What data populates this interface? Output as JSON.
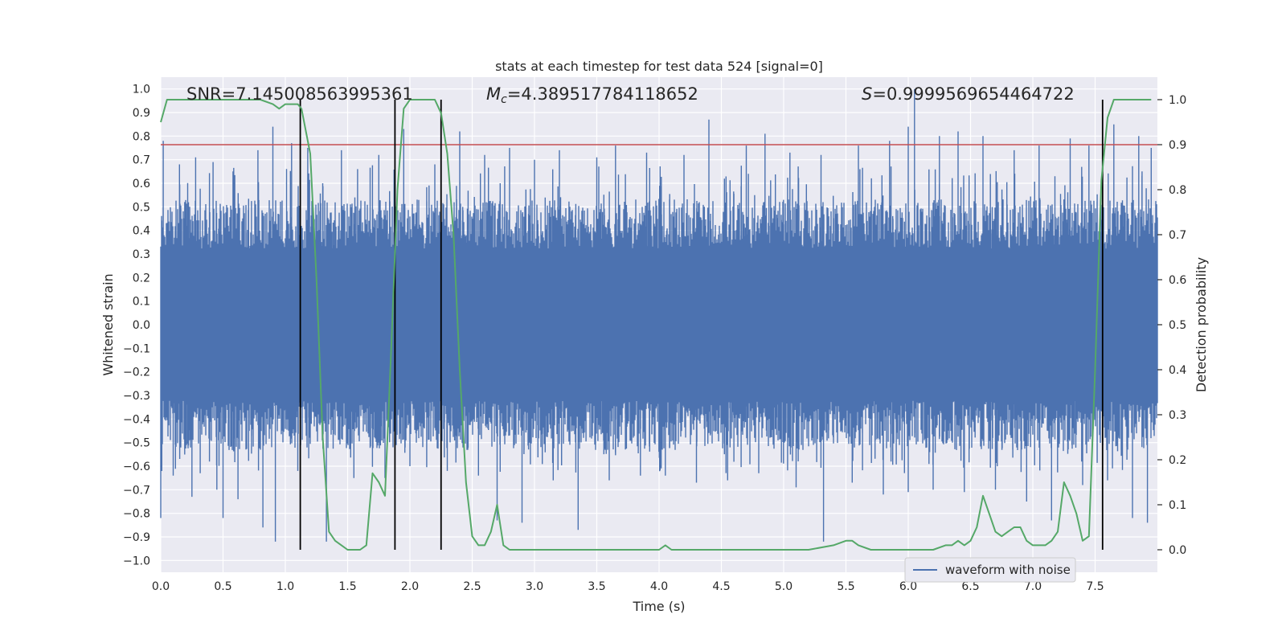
{
  "chart_data": {
    "type": "line",
    "title": "stats at each timestep for test data 524 [signal=0]",
    "xlabel": "Time (s)",
    "ylabel_left": "Whitened strain",
    "ylabel_right": "Detection probability",
    "xlim": [
      0.0,
      8.0
    ],
    "ylim_left": [
      -1.05,
      1.05
    ],
    "ylim_right": [
      -0.05,
      1.05
    ],
    "x_ticks": [
      "0.0",
      "0.5",
      "1.0",
      "1.5",
      "2.0",
      "2.5",
      "3.0",
      "3.5",
      "4.0",
      "4.5",
      "5.0",
      "5.5",
      "6.0",
      "6.5",
      "7.0",
      "7.5"
    ],
    "y_ticks_left": [
      "1.0",
      "0.9",
      "0.8",
      "0.7",
      "0.6",
      "0.5",
      "0.4",
      "0.3",
      "0.2",
      "0.1",
      "0.0",
      "−0.1",
      "−0.2",
      "−0.3",
      "−0.4",
      "−0.5",
      "−0.6",
      "−0.7",
      "−0.8",
      "−0.9",
      "−1.0"
    ],
    "y_ticks_right": [
      "1.0",
      "0.9",
      "0.8",
      "0.7",
      "0.6",
      "0.5",
      "0.4",
      "0.3",
      "0.2",
      "0.1",
      "0.0"
    ],
    "grid": true,
    "legend": {
      "position": "lower-right",
      "entries": [
        "waveform with noise"
      ]
    },
    "annotations": {
      "snr": "SNR=7.145008563995361",
      "mc_symbol": "M",
      "mc_sub": "c",
      "mc_value": "=4.389517784118652",
      "s_symbol": "S",
      "s_value": "=0.9999569654464722"
    },
    "threshold": {
      "axis": "right",
      "value": 0.9,
      "color": "#c44e52"
    },
    "vertical_markers": [
      1.12,
      1.88,
      2.25,
      7.56
    ],
    "waveform": {
      "name": "waveform with noise",
      "color": "#4c72b0",
      "dense_amplitude": 0.38,
      "peaks_pos": [
        [
          0.02,
          0.78
        ],
        [
          0.15,
          0.68
        ],
        [
          0.28,
          0.71
        ],
        [
          0.42,
          0.69
        ],
        [
          0.58,
          0.65
        ],
        [
          0.78,
          0.74
        ],
        [
          0.9,
          0.84
        ],
        [
          1.05,
          0.77
        ],
        [
          1.18,
          0.75
        ],
        [
          1.3,
          0.6
        ],
        [
          1.45,
          0.74
        ],
        [
          1.58,
          0.66
        ],
        [
          1.75,
          0.72
        ],
        [
          1.95,
          0.83
        ],
        [
          2.2,
          0.68
        ],
        [
          2.4,
          0.82
        ],
        [
          2.6,
          0.72
        ],
        [
          2.8,
          0.75
        ],
        [
          3.0,
          0.7
        ],
        [
          3.2,
          0.74
        ],
        [
          3.5,
          0.71
        ],
        [
          3.65,
          0.76
        ],
        [
          3.9,
          0.73
        ],
        [
          4.2,
          0.72
        ],
        [
          4.4,
          0.87
        ],
        [
          4.7,
          0.76
        ],
        [
          4.85,
          0.81
        ],
        [
          5.05,
          0.73
        ],
        [
          5.3,
          0.72
        ],
        [
          5.6,
          0.76
        ],
        [
          5.85,
          0.78
        ],
        [
          6.0,
          0.84
        ],
        [
          6.05,
          1.0
        ],
        [
          6.25,
          0.8
        ],
        [
          6.4,
          0.82
        ],
        [
          6.6,
          0.8
        ],
        [
          6.85,
          0.74
        ],
        [
          7.05,
          0.76
        ],
        [
          7.3,
          0.79
        ],
        [
          7.45,
          0.76
        ],
        [
          7.65,
          0.85
        ],
        [
          7.85,
          0.8
        ],
        [
          7.95,
          0.75
        ]
      ],
      "peaks_neg": [
        [
          0.0,
          -0.82
        ],
        [
          0.1,
          -0.64
        ],
        [
          0.25,
          -0.73
        ],
        [
          0.45,
          -0.7
        ],
        [
          0.5,
          -0.82
        ],
        [
          0.62,
          -0.74
        ],
        [
          0.82,
          -0.86
        ],
        [
          0.92,
          -0.92
        ],
        [
          1.1,
          -0.62
        ],
        [
          1.33,
          -0.92
        ],
        [
          1.55,
          -0.65
        ],
        [
          1.8,
          -0.65
        ],
        [
          2.0,
          -0.6
        ],
        [
          2.3,
          -0.62
        ],
        [
          2.55,
          -0.64
        ],
        [
          2.7,
          -0.83
        ],
        [
          2.9,
          -0.84
        ],
        [
          3.15,
          -0.66
        ],
        [
          3.35,
          -0.87
        ],
        [
          3.6,
          -0.66
        ],
        [
          3.85,
          -0.64
        ],
        [
          4.05,
          -0.64
        ],
        [
          4.3,
          -0.67
        ],
        [
          4.55,
          -0.66
        ],
        [
          4.8,
          -0.63
        ],
        [
          5.1,
          -0.69
        ],
        [
          5.32,
          -0.92
        ],
        [
          5.55,
          -0.67
        ],
        [
          5.8,
          -0.72
        ],
        [
          6.0,
          -0.71
        ],
        [
          6.2,
          -0.7
        ],
        [
          6.45,
          -0.71
        ],
        [
          6.7,
          -0.7
        ],
        [
          6.95,
          -0.75
        ],
        [
          7.15,
          -0.83
        ],
        [
          7.4,
          -0.68
        ],
        [
          7.6,
          -0.66
        ],
        [
          7.8,
          -0.82
        ],
        [
          7.92,
          -0.84
        ]
      ]
    },
    "probability": {
      "color": "#55a868",
      "x": [
        0.0,
        0.05,
        0.1,
        0.2,
        0.3,
        0.4,
        0.5,
        0.6,
        0.7,
        0.8,
        0.9,
        0.95,
        1.0,
        1.05,
        1.1,
        1.13,
        1.2,
        1.25,
        1.3,
        1.35,
        1.4,
        1.45,
        1.5,
        1.55,
        1.6,
        1.65,
        1.7,
        1.75,
        1.8,
        1.85,
        1.9,
        1.95,
        2.0,
        2.05,
        2.1,
        2.15,
        2.2,
        2.25,
        2.3,
        2.35,
        2.4,
        2.45,
        2.5,
        2.55,
        2.6,
        2.65,
        2.7,
        2.75,
        2.8,
        2.85,
        2.9,
        3.0,
        3.1,
        3.3,
        3.5,
        3.7,
        3.9,
        4.0,
        4.05,
        4.1,
        4.3,
        4.6,
        4.9,
        5.2,
        5.4,
        5.5,
        5.55,
        5.6,
        5.7,
        5.8,
        6.0,
        6.2,
        6.3,
        6.35,
        6.4,
        6.45,
        6.5,
        6.55,
        6.6,
        6.65,
        6.7,
        6.75,
        6.8,
        6.85,
        6.9,
        6.95,
        7.0,
        7.05,
        7.1,
        7.15,
        7.2,
        7.25,
        7.3,
        7.35,
        7.4,
        7.45,
        7.5,
        7.55,
        7.6,
        7.65,
        7.7,
        7.8,
        7.9,
        7.95
      ],
      "y": [
        0.95,
        1.0,
        1.0,
        1.0,
        1.0,
        1.0,
        1.0,
        1.0,
        1.0,
        1.0,
        0.99,
        0.98,
        0.99,
        0.99,
        0.99,
        0.98,
        0.88,
        0.6,
        0.25,
        0.04,
        0.02,
        0.01,
        0.0,
        0.0,
        0.0,
        0.01,
        0.17,
        0.15,
        0.12,
        0.45,
        0.8,
        0.98,
        1.0,
        1.0,
        1.0,
        1.0,
        1.0,
        0.97,
        0.88,
        0.7,
        0.4,
        0.15,
        0.03,
        0.01,
        0.01,
        0.04,
        0.1,
        0.01,
        0.0,
        0.0,
        0.0,
        0.0,
        0.0,
        0.0,
        0.0,
        0.0,
        0.0,
        0.0,
        0.01,
        0.0,
        0.0,
        0.0,
        0.0,
        0.0,
        0.01,
        0.02,
        0.02,
        0.01,
        0.0,
        0.0,
        0.0,
        0.0,
        0.01,
        0.01,
        0.02,
        0.01,
        0.02,
        0.05,
        0.12,
        0.08,
        0.04,
        0.03,
        0.04,
        0.05,
        0.05,
        0.02,
        0.01,
        0.01,
        0.01,
        0.02,
        0.04,
        0.15,
        0.12,
        0.08,
        0.02,
        0.03,
        0.4,
        0.82,
        0.96,
        1.0,
        1.0,
        1.0,
        1.0,
        1.0
      ]
    }
  }
}
